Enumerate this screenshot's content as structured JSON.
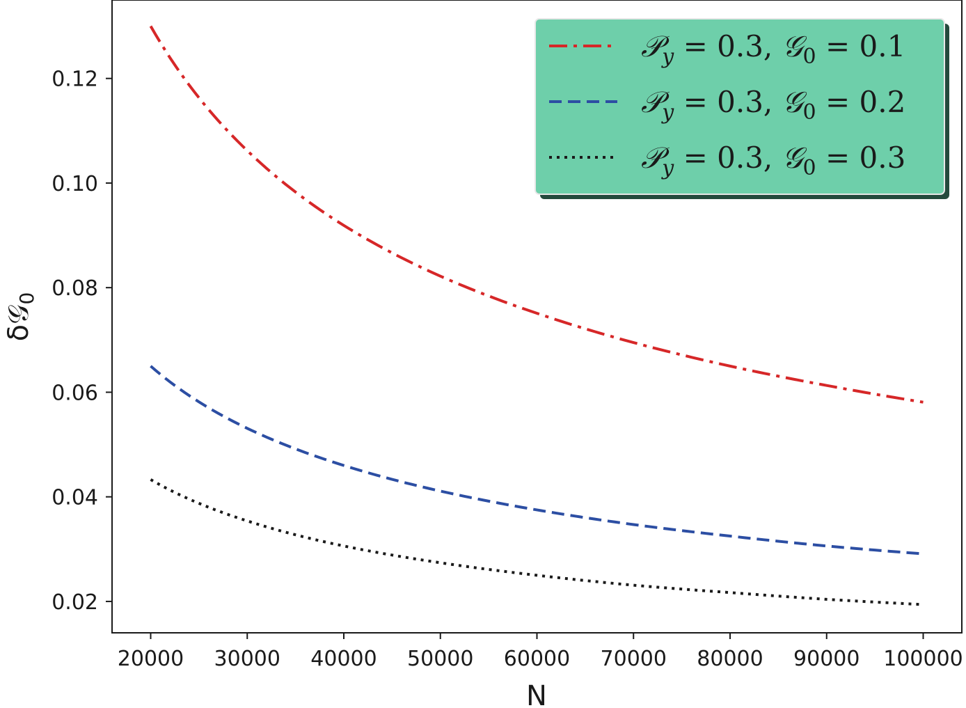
{
  "chart_data": {
    "type": "line",
    "xlabel": "N",
    "ylabel": "δ𝒢0",
    "xlim": [
      16000,
      104000
    ],
    "ylim": [
      0.014,
      0.135
    ],
    "xticks": [
      20000,
      30000,
      40000,
      50000,
      60000,
      70000,
      80000,
      90000,
      100000
    ],
    "xtick_labels": [
      "20000",
      "30000",
      "40000",
      "50000",
      "60000",
      "70000",
      "80000",
      "90000",
      "100000"
    ],
    "yticks": [
      0.02,
      0.04,
      0.06,
      0.08,
      0.1,
      0.12
    ],
    "ytick_labels": [
      "0.02",
      "0.04",
      "0.06",
      "0.08",
      "0.10",
      "0.12"
    ],
    "grid": false,
    "legend_position": "top-right",
    "legend_background": "#6ecfaa",
    "x": [
      20000,
      30000,
      40000,
      50000,
      60000,
      70000,
      80000,
      90000,
      100000
    ],
    "series": [
      {
        "name": "𝒫y = 0.3, 𝒢0 = 0.1",
        "label_parts": [
          "𝒫",
          "y",
          " = 0.3, ",
          "𝒢",
          "0",
          " = 0.1"
        ],
        "color": "#d62728",
        "style": "dashdot",
        "values": [
          0.13,
          0.1062,
          0.0919,
          0.0822,
          0.0751,
          0.0695,
          0.065,
          0.0613,
          0.0581
        ]
      },
      {
        "name": "𝒫y = 0.3, 𝒢0 = 0.2",
        "label_parts": [
          "𝒫",
          "y",
          " = 0.3, ",
          "𝒢",
          "0",
          " = 0.2"
        ],
        "color": "#2c4ea3",
        "style": "dashed",
        "values": [
          0.065,
          0.0531,
          0.046,
          0.0411,
          0.0375,
          0.0347,
          0.0325,
          0.0306,
          0.0291
        ]
      },
      {
        "name": "𝒫y = 0.3, 𝒢0 = 0.3",
        "label_parts": [
          "𝒫",
          "y",
          " = 0.3, ",
          "𝒢",
          "0",
          " = 0.3"
        ],
        "color": "#1a1a1a",
        "style": "dotted",
        "values": [
          0.0433,
          0.0354,
          0.0306,
          0.0274,
          0.025,
          0.0231,
          0.0217,
          0.0204,
          0.0194
        ]
      }
    ]
  }
}
